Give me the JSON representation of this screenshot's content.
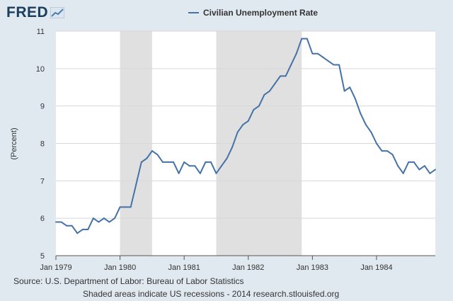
{
  "logo": {
    "text": "FRED",
    "icon": "chart-line-icon"
  },
  "chart_data": {
    "type": "line",
    "title": "",
    "xlabel": "",
    "ylabel": "(Percent)",
    "ylim": [
      5,
      11
    ],
    "yticks": [
      5,
      6,
      7,
      8,
      9,
      10,
      11
    ],
    "xlim": [
      "1979-01",
      "1984-12"
    ],
    "xticks": [
      {
        "date": "1979-01",
        "label": "Jan 1979"
      },
      {
        "date": "1980-01",
        "label": "Jan 1980"
      },
      {
        "date": "1981-01",
        "label": "Jan 1981"
      },
      {
        "date": "1982-01",
        "label": "Jan 1982"
      },
      {
        "date": "1983-01",
        "label": "Jan 1983"
      },
      {
        "date": "1984-01",
        "label": "Jan 1984"
      }
    ],
    "grid": true,
    "legend_position": "top-center",
    "line_color": "#4572a7",
    "recession_color": "#e0e0e0",
    "recessions": [
      {
        "start": "1980-01",
        "end": "1980-07"
      },
      {
        "start": "1981-07",
        "end": "1982-11"
      }
    ],
    "series": [
      {
        "name": "Civilian Unemployment Rate",
        "x": [
          "1979-01",
          "1979-02",
          "1979-03",
          "1979-04",
          "1979-05",
          "1979-06",
          "1979-07",
          "1979-08",
          "1979-09",
          "1979-10",
          "1979-11",
          "1979-12",
          "1980-01",
          "1980-02",
          "1980-03",
          "1980-04",
          "1980-05",
          "1980-06",
          "1980-07",
          "1980-08",
          "1980-09",
          "1980-10",
          "1980-11",
          "1980-12",
          "1981-01",
          "1981-02",
          "1981-03",
          "1981-04",
          "1981-05",
          "1981-06",
          "1981-07",
          "1981-08",
          "1981-09",
          "1981-10",
          "1981-11",
          "1981-12",
          "1982-01",
          "1982-02",
          "1982-03",
          "1982-04",
          "1982-05",
          "1982-06",
          "1982-07",
          "1982-08",
          "1982-09",
          "1982-10",
          "1982-11",
          "1982-12",
          "1983-01",
          "1983-02",
          "1983-03",
          "1983-04",
          "1983-05",
          "1983-06",
          "1983-07",
          "1983-08",
          "1983-09",
          "1983-10",
          "1983-11",
          "1983-12",
          "1984-01",
          "1984-02",
          "1984-03",
          "1984-04",
          "1984-05",
          "1984-06",
          "1984-07",
          "1984-08",
          "1984-09",
          "1984-10",
          "1984-11",
          "1984-12"
        ],
        "values": [
          5.9,
          5.9,
          5.8,
          5.8,
          5.6,
          5.7,
          5.7,
          6.0,
          5.9,
          6.0,
          5.9,
          6.0,
          6.3,
          6.3,
          6.3,
          6.9,
          7.5,
          7.6,
          7.8,
          7.7,
          7.5,
          7.5,
          7.5,
          7.2,
          7.5,
          7.4,
          7.4,
          7.2,
          7.5,
          7.5,
          7.2,
          7.4,
          7.6,
          7.9,
          8.3,
          8.5,
          8.6,
          8.9,
          9.0,
          9.3,
          9.4,
          9.6,
          9.8,
          9.8,
          10.1,
          10.4,
          10.8,
          10.8,
          10.4,
          10.4,
          10.3,
          10.2,
          10.1,
          10.1,
          9.4,
          9.5,
          9.2,
          8.8,
          8.5,
          8.3,
          8.0,
          7.8,
          7.8,
          7.7,
          7.4,
          7.2,
          7.5,
          7.5,
          7.3,
          7.4,
          7.2,
          7.3
        ]
      }
    ]
  },
  "footer": {
    "source": "Source: U.S. Department of Labor: Bureau of Labor Statistics",
    "note": "Shaded areas indicate US recessions - 2014 research.stlouisfed.org"
  }
}
